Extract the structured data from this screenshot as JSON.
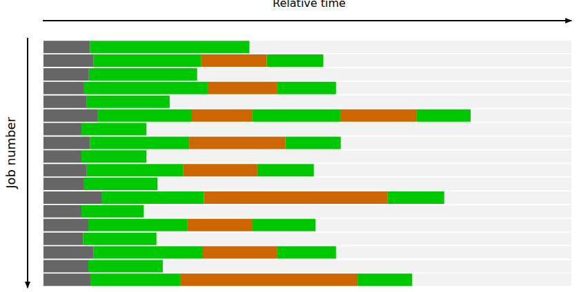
{
  "chart_data": {
    "type": "bar",
    "orientation": "horizontal",
    "stacked": true,
    "tick_labels": false,
    "x_label": "Relative time",
    "y_label": "Job number",
    "xlim": [
      0,
      100
    ],
    "categories": [
      null,
      null,
      null,
      null,
      null,
      null,
      null,
      null,
      null,
      null,
      null,
      null,
      null,
      null,
      null,
      null,
      null,
      null
    ],
    "series": [
      {
        "color": "#666666",
        "values": [
          8.8,
          9.5,
          8.6,
          7.7,
          8.2,
          10.2,
          7.2,
          8.8,
          7.2,
          8.2,
          7.7,
          11.1,
          7.2,
          8.5,
          7.5,
          9.5,
          8.5,
          9.0
        ]
      },
      {
        "color": "#00c800",
        "values": [
          30.2,
          20.4,
          20.5,
          23.4,
          15.7,
          17.9,
          12.3,
          18.8,
          12.3,
          18.3,
          13.9,
          19.3,
          11.8,
          18.8,
          13.9,
          20.7,
          14.1,
          17.0
        ]
      },
      {
        "color": "#cc6600",
        "values": [
          null,
          12.4,
          null,
          13.2,
          null,
          11.4,
          null,
          18.2,
          null,
          14.0,
          null,
          34.8,
          null,
          12.3,
          null,
          14.1,
          null,
          33.5
        ]
      },
      {
        "color": "#00c800",
        "values": [
          null,
          10.7,
          null,
          11.1,
          null,
          16.7,
          null,
          10.5,
          null,
          10.7,
          null,
          10.7,
          null,
          11.9,
          null,
          11.1,
          null,
          10.3
        ]
      },
      {
        "color": "#cc6600",
        "values": [
          null,
          null,
          null,
          null,
          null,
          14.5,
          null,
          null,
          null,
          null,
          null,
          null,
          null,
          null,
          null,
          null,
          null,
          null
        ]
      },
      {
        "color": "#00c800",
        "values": [
          null,
          null,
          null,
          null,
          null,
          10.2,
          null,
          null,
          null,
          null,
          null,
          null,
          null,
          null,
          null,
          null,
          null,
          null
        ]
      }
    ]
  }
}
